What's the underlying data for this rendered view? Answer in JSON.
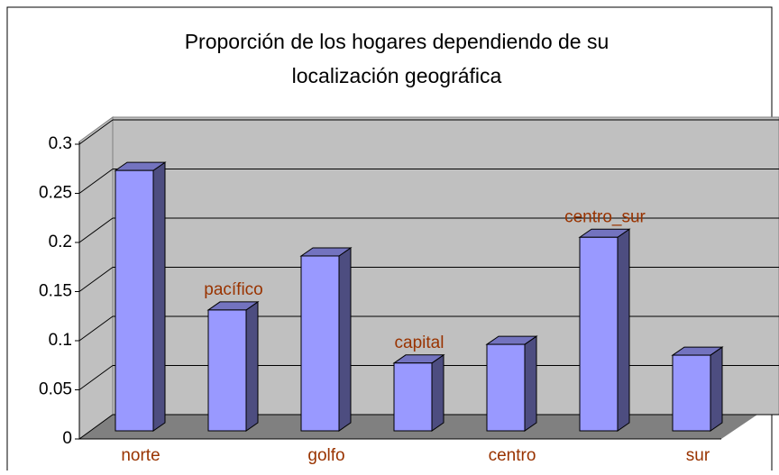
{
  "chart_data": {
    "type": "bar3d",
    "title": [
      "Proporción de los hogares dependiendo de su",
      "localización geográfica"
    ],
    "categories": [
      "norte",
      "pacífico",
      "golfo",
      "capital",
      "centro",
      "centro_sur",
      "sur"
    ],
    "values": [
      0.265,
      0.123,
      0.178,
      0.069,
      0.088,
      0.197,
      0.077
    ],
    "color": "#9999ff",
    "ylim": [
      0,
      0.3
    ],
    "yticks": [
      0,
      0.05,
      0.1,
      0.15,
      0.2,
      0.25,
      0.3
    ],
    "grid": true
  }
}
